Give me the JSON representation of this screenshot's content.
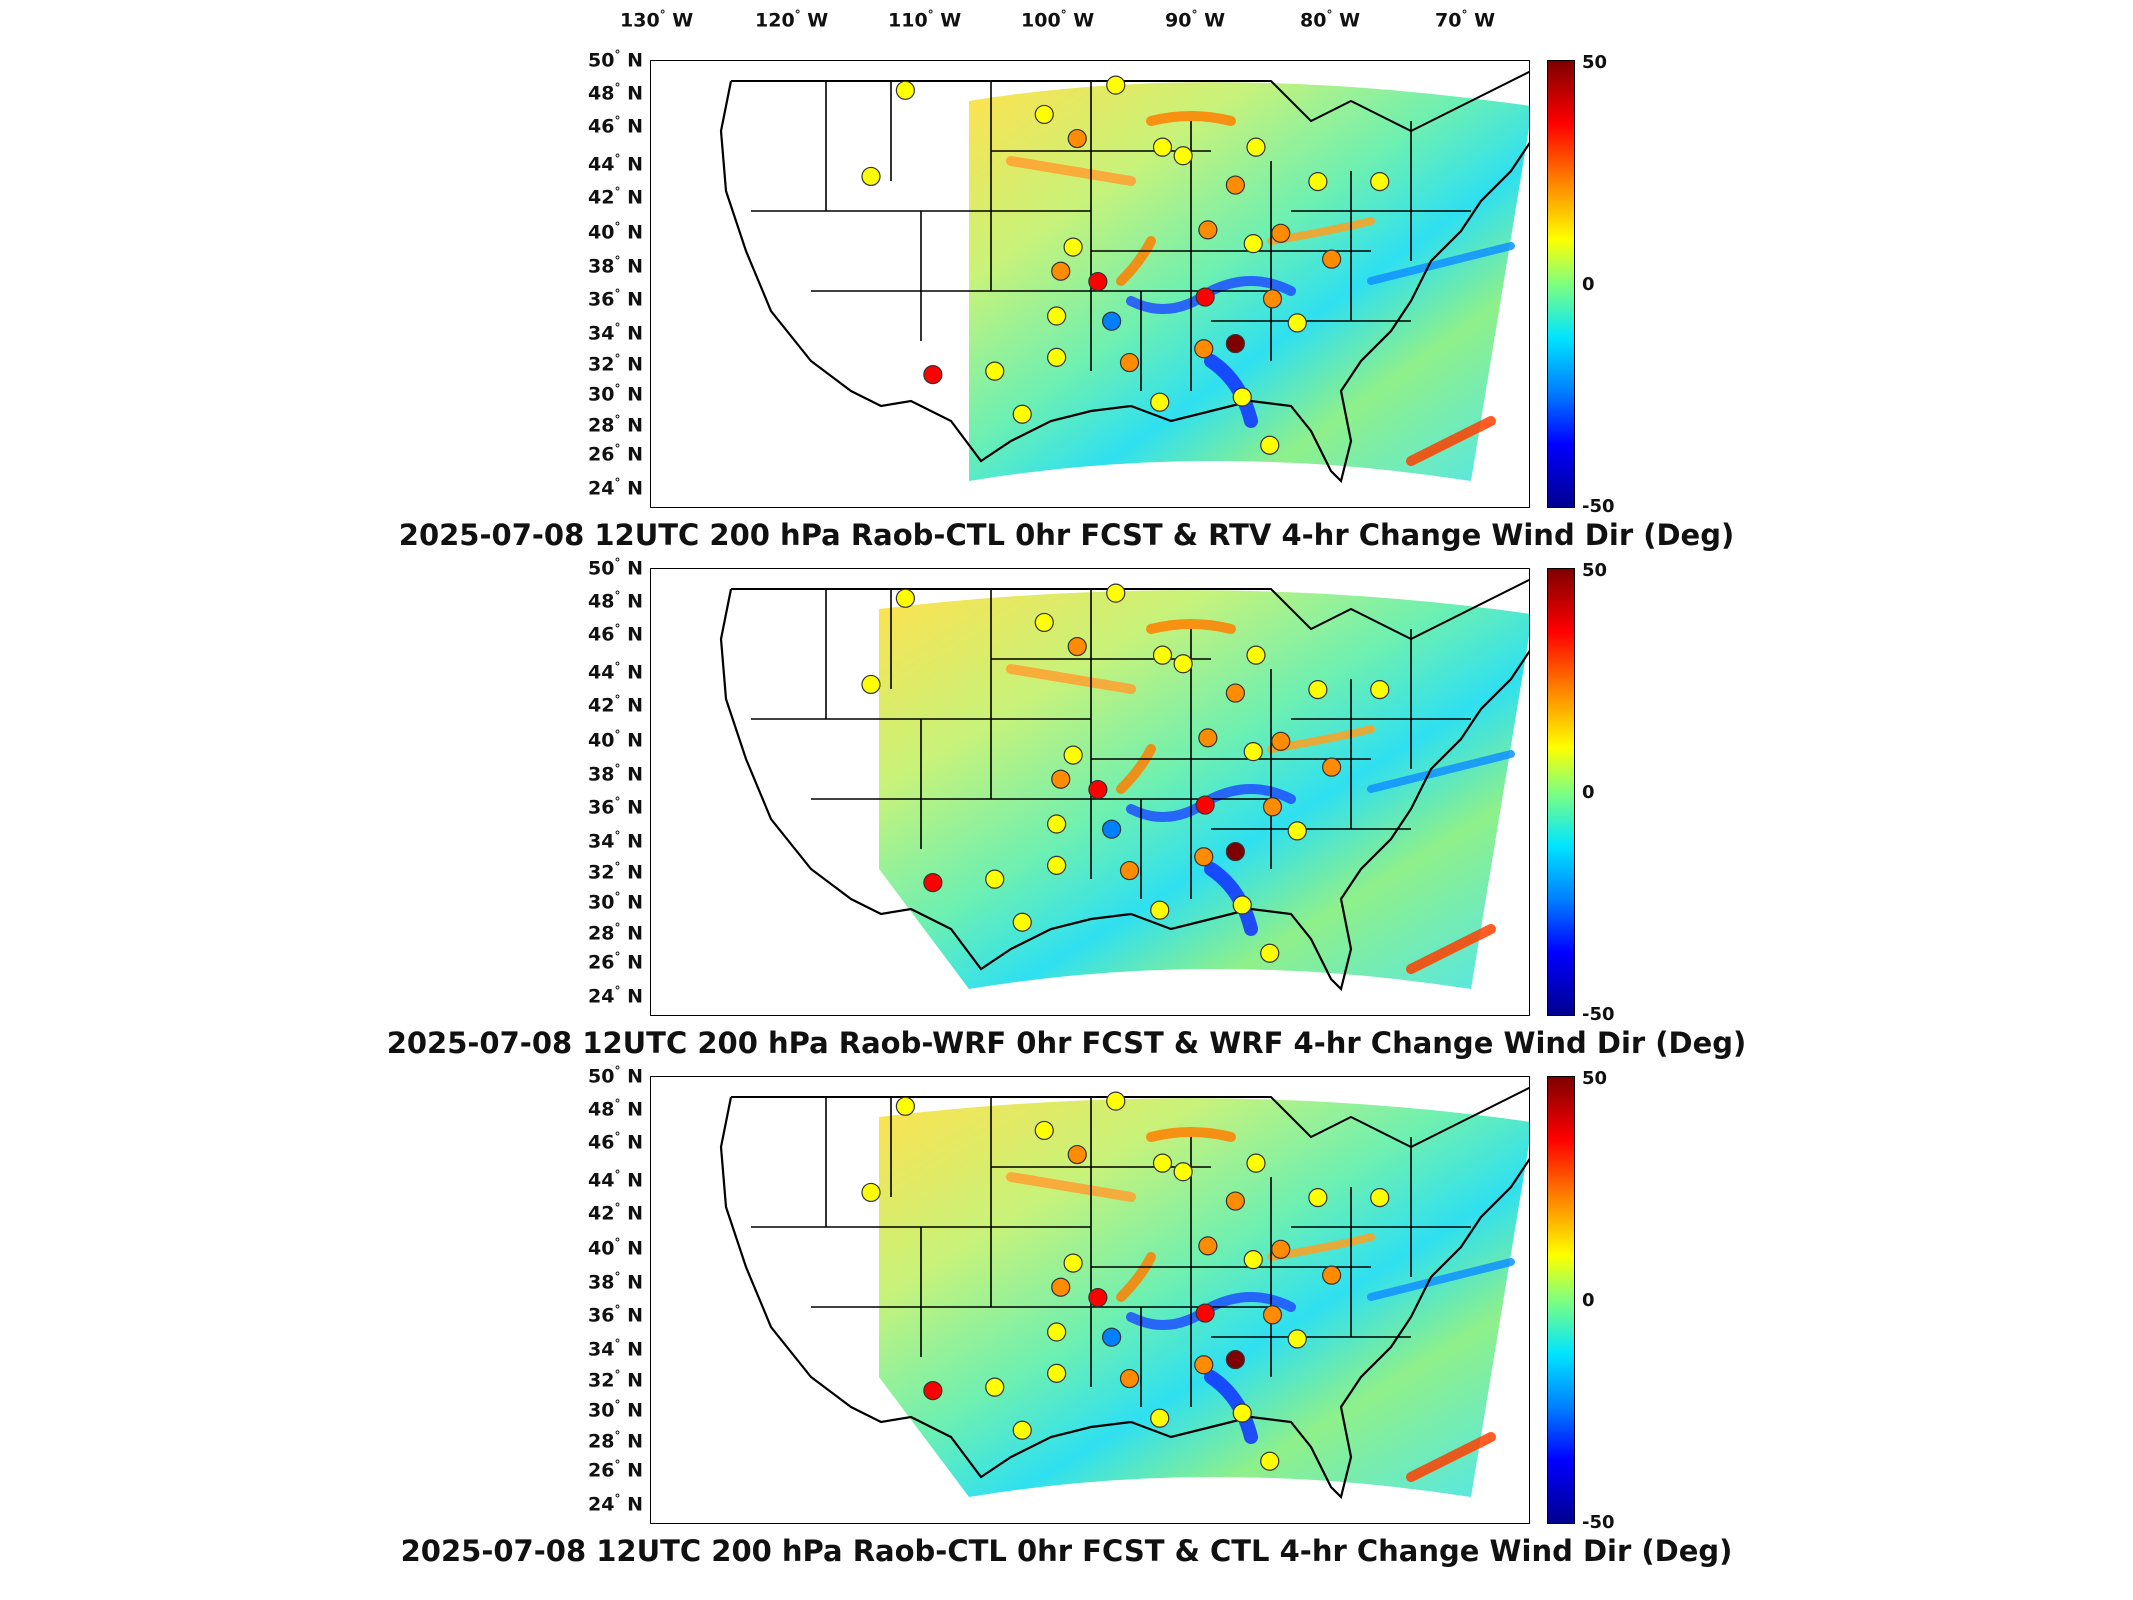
{
  "longitude_labels": [
    "130",
    "120",
    "110",
    "100",
    "90",
    "80",
    "70"
  ],
  "longitude_suffix": "W",
  "latitude_labels": [
    "50",
    "48",
    "46",
    "44",
    "42",
    "40",
    "38",
    "36",
    "34",
    "32",
    "30",
    "28",
    "26",
    "24"
  ],
  "latitude_suffix": "N",
  "colorbar": {
    "max": "50",
    "mid": "0",
    "min": "-50",
    "colors": [
      "#7f0000",
      "#ff0000",
      "#ff8c00",
      "#ffff00",
      "#7fff7f",
      "#00e5ff",
      "#0080ff",
      "#0000ff",
      "#00008f"
    ]
  },
  "panels": [
    {
      "title": "2025-07-08 12UTC 200 hPa Raob-CTL 0hr FCST & RTV 4-hr Change Wind Dir (Deg)"
    },
    {
      "title": "2025-07-08 12UTC 200 hPa Raob-WRF 0hr FCST & WRF 4-hr Change Wind Dir (Deg)"
    },
    {
      "title": "2025-07-08 12UTC 200 hPa Raob-CTL 0hr FCST & CTL 4-hr Change Wind Dir (Deg)"
    }
  ],
  "stations": [
    {
      "lon": -108.5,
      "lat": 48.3,
      "value": 5
    },
    {
      "lon": -111.0,
      "lat": 43.3,
      "value": 5
    },
    {
      "lon": -98.4,
      "lat": 46.9,
      "value": 8
    },
    {
      "lon": -96.0,
      "lat": 45.5,
      "value": 10
    },
    {
      "lon": -93.2,
      "lat": 48.6,
      "value": 0
    },
    {
      "lon": -89.8,
      "lat": 45.0,
      "value": 3
    },
    {
      "lon": -83.0,
      "lat": 45.0,
      "value": 3
    },
    {
      "lon": -84.5,
      "lat": 42.8,
      "value": 10
    },
    {
      "lon": -86.5,
      "lat": 40.2,
      "value": 20
    },
    {
      "lon": -88.3,
      "lat": 44.5,
      "value": 5
    },
    {
      "lon": -96.3,
      "lat": 39.2,
      "value": 5
    },
    {
      "lon": -97.2,
      "lat": 37.8,
      "value": 10
    },
    {
      "lon": -94.5,
      "lat": 37.2,
      "value": 35
    },
    {
      "lon": -93.5,
      "lat": 34.9,
      "value": -40
    },
    {
      "lon": -97.5,
      "lat": 35.2,
      "value": 8
    },
    {
      "lon": -97.5,
      "lat": 32.8,
      "value": 5
    },
    {
      "lon": -102.0,
      "lat": 32.0,
      "value": 8
    },
    {
      "lon": -100.0,
      "lat": 29.5,
      "value": 5
    },
    {
      "lon": -106.5,
      "lat": 31.8,
      "value": 30
    },
    {
      "lon": -92.2,
      "lat": 32.5,
      "value": 10
    },
    {
      "lon": -86.7,
      "lat": 36.3,
      "value": 28
    },
    {
      "lon": -86.8,
      "lat": 33.3,
      "value": 18
    },
    {
      "lon": -84.5,
      "lat": 33.6,
      "value": 42
    },
    {
      "lon": -81.8,
      "lat": 36.2,
      "value": 10
    },
    {
      "lon": -80.0,
      "lat": 34.8,
      "value": 5
    },
    {
      "lon": -81.2,
      "lat": 40.0,
      "value": 10
    },
    {
      "lon": -83.2,
      "lat": 39.4,
      "value": 5
    },
    {
      "lon": -78.5,
      "lat": 43.0,
      "value": 5
    },
    {
      "lon": -74.0,
      "lat": 43.0,
      "value": 5
    },
    {
      "lon": -77.5,
      "lat": 38.5,
      "value": 10
    },
    {
      "lon": -84.0,
      "lat": 30.5,
      "value": 5
    },
    {
      "lon": -82.0,
      "lat": 27.7,
      "value": 5
    },
    {
      "lon": -90.0,
      "lat": 30.2,
      "value": 5
    }
  ]
}
